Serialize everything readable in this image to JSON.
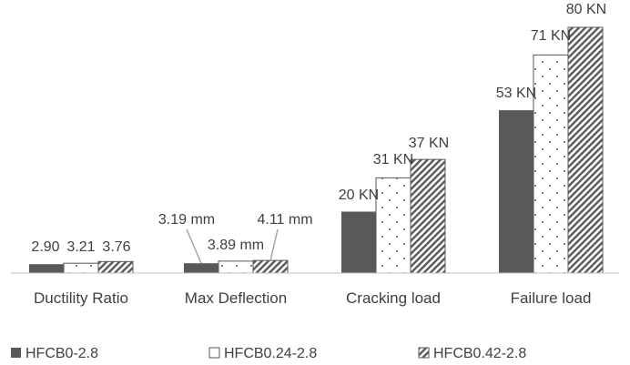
{
  "chart_data": {
    "type": "bar",
    "categories": [
      "Ductility Ratio",
      "Max Deflection",
      "Cracking load",
      "Failure load"
    ],
    "series": [
      {
        "name": "HFCB0-2.8",
        "values": [
          2.9,
          3.19,
          20,
          53
        ],
        "labels": [
          "2.90",
          "3.19 mm",
          "20 KN",
          "53 KN"
        ]
      },
      {
        "name": "HFCB0.24-2.8",
        "values": [
          3.21,
          3.89,
          31,
          71
        ],
        "labels": [
          "3.21",
          "3.89 mm",
          "31 KN",
          "71 KN"
        ]
      },
      {
        "name": "HFCB0.42-2.8",
        "values": [
          3.76,
          4.11,
          37,
          80
        ],
        "labels": [
          "3.76",
          "4.11 mm",
          "37 KN",
          "80 KN"
        ]
      }
    ],
    "ylim": [
      0,
      80
    ],
    "grid": false,
    "legend_position": "bottom",
    "colors": {
      "series1": "#595959",
      "series2_pattern": "dots",
      "series3_pattern": "diagonal-stripes",
      "axis": "#bfbfbf",
      "text": "#404040"
    }
  }
}
